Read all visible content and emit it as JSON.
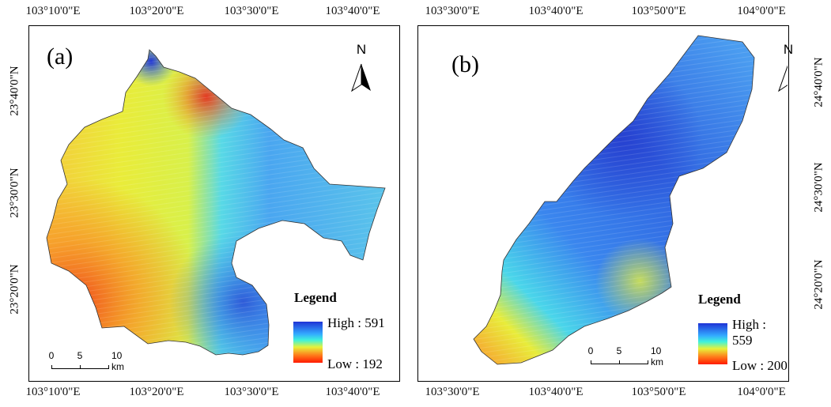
{
  "figure": {
    "top_ticks_a": [
      "103°10'0\"E",
      "103°20'0\"E",
      "103°30'0\"E",
      "103°40'0\"E"
    ],
    "bottom_ticks_a": [
      "103°10'0\"E",
      "103°20'0\"E",
      "103°30'0\"E",
      "103°40'0\"E"
    ],
    "left_ticks_a": [
      "23°40'0\"N",
      "23°30'0\"N",
      "23°20'0\"N"
    ],
    "top_ticks_b": [
      "103°30'0\"E",
      "103°40'0\"E",
      "103°50'0\"E",
      "104°0'0\"E"
    ],
    "bottom_ticks_b": [
      "103°30'0\"E",
      "103°40'0\"E",
      "103°50'0\"E",
      "104°0'0\"E"
    ],
    "right_ticks_b": [
      "24°40'0\"N",
      "24°30'0\"N",
      "24°20'0\"N"
    ]
  },
  "panel_a": {
    "label": "(a)",
    "north": "N",
    "legend_title": "Legend",
    "legend_high": "High : 591",
    "legend_low": "Low : 192",
    "scale_labels": [
      "0",
      "5",
      "10 km"
    ]
  },
  "panel_b": {
    "label": "(b)",
    "north": "N",
    "legend_title": "Legend",
    "legend_high": "High : 559",
    "legend_low": "Low : 200",
    "scale_labels": [
      "0",
      "5",
      "10 km"
    ]
  },
  "colors": {
    "high": "#1f33d6",
    "mid_high": "#33aaff",
    "mid": "#e8f23a",
    "low": "#ff1a00"
  }
}
